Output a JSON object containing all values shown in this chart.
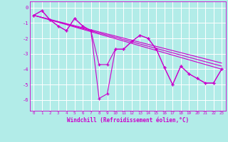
{
  "xlabel": "Windchill (Refroidissement éolien,°C)",
  "ylabel": "",
  "xlim": [
    -0.5,
    23.5
  ],
  "ylim": [
    -6.7,
    0.4
  ],
  "yticks": [
    0,
    -1,
    -2,
    -3,
    -4,
    -5,
    -6
  ],
  "xticks": [
    0,
    1,
    2,
    3,
    4,
    5,
    6,
    7,
    8,
    9,
    10,
    11,
    12,
    13,
    14,
    15,
    16,
    17,
    18,
    19,
    20,
    21,
    22,
    23
  ],
  "bg_color": "#b2ece8",
  "grid_color": "#ffffff",
  "line_color": "#cc00cc",
  "line1_x": [
    0,
    1,
    2,
    3,
    4,
    5,
    6,
    7,
    8,
    9,
    10,
    11,
    12,
    13,
    14,
    15,
    16,
    17,
    18,
    19,
    20,
    21,
    22,
    23
  ],
  "line1_y": [
    -0.5,
    -0.2,
    -0.8,
    -1.2,
    -1.5,
    -0.7,
    -1.2,
    -1.5,
    -5.9,
    -5.6,
    -2.7,
    -2.7,
    -2.2,
    -1.8,
    -2.0,
    -2.7,
    -3.9,
    -5.0,
    -3.8,
    -4.3,
    -4.6,
    -4.9,
    -4.9,
    -4.0
  ],
  "line2_x": [
    0,
    1,
    2,
    3,
    4,
    5,
    6,
    7,
    8,
    9,
    10,
    11,
    12,
    13,
    14,
    15,
    16,
    17,
    18,
    19,
    20,
    21,
    22,
    23
  ],
  "line2_y": [
    -0.5,
    -0.2,
    -0.8,
    -1.2,
    -1.5,
    -0.7,
    -1.2,
    -1.5,
    -3.7,
    -3.7,
    -2.7,
    -2.7,
    -2.2,
    -1.8,
    -2.0,
    -2.7,
    -3.9,
    -5.0,
    -3.8,
    -4.3,
    -4.6,
    -4.9,
    -4.9,
    -4.0
  ],
  "trend_lines": [
    {
      "x": [
        0,
        23
      ],
      "y": [
        -0.5,
        -3.6
      ]
    },
    {
      "x": [
        0,
        23
      ],
      "y": [
        -0.5,
        -3.8
      ]
    },
    {
      "x": [
        0,
        23
      ],
      "y": [
        -0.5,
        -4.0
      ]
    }
  ]
}
